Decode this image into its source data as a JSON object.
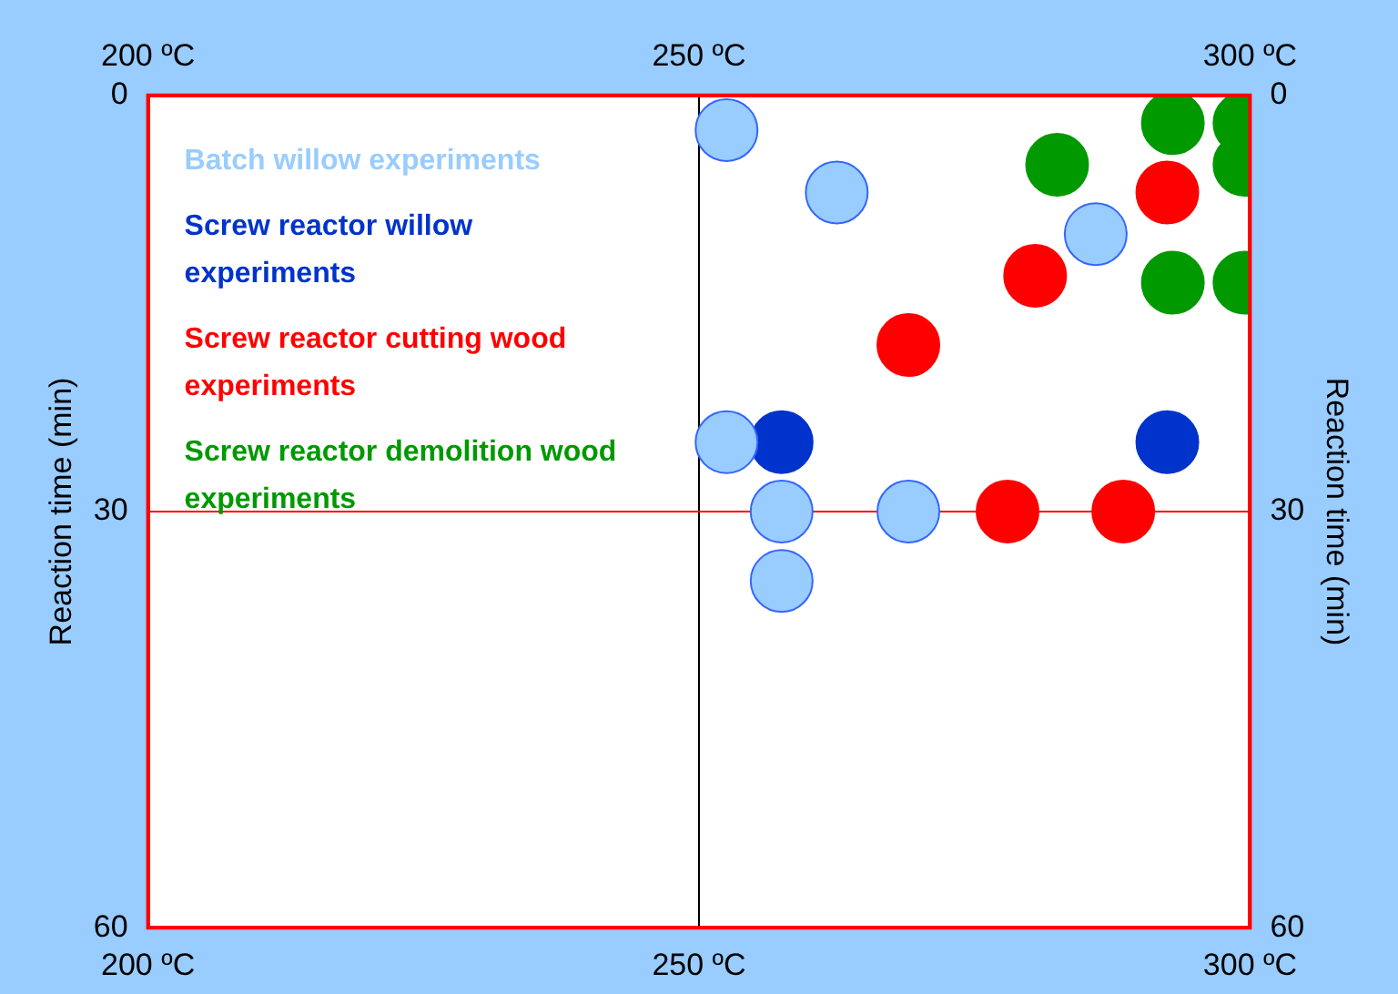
{
  "chart_data": {
    "type": "scatter",
    "xlabel": null,
    "ylabel": "Reaction time (min)",
    "y2label": "Reaction time (min)",
    "xlim": [
      200,
      300
    ],
    "xticks": [
      {
        "value": 200,
        "label": "200 ºC"
      },
      {
        "value": 250,
        "label": "250 ºC"
      },
      {
        "value": 300,
        "label": "300 ºC"
      }
    ],
    "x2lim": [
      200,
      300
    ],
    "x2ticks": [
      {
        "value": 200,
        "label": "200 ºC"
      },
      {
        "value": 250,
        "label": "250 ºC"
      },
      {
        "value": 300,
        "label": "300 ºC"
      }
    ],
    "ylim": [
      60,
      0
    ],
    "yticks": [
      0,
      30,
      60
    ],
    "y2lim": [
      60,
      0
    ],
    "y2ticks": [
      0,
      30,
      60
    ],
    "legend": "top left",
    "marker": "circle",
    "ref_lines": [
      {
        "axis": "x",
        "value": 250,
        "color": "#000000"
      },
      {
        "axis": "y",
        "value": 30,
        "color": "#ff0000"
      }
    ],
    "series": [
      {
        "name": "Batch willow experiments",
        "color": "#99ccff",
        "x": [
          252.5,
          262.5,
          286,
          252.5,
          257.5,
          257.5,
          269
        ],
        "values": [
          2.5,
          7,
          10,
          25,
          30,
          35,
          30
        ]
      },
      {
        "name": "Screw reactor willow experiments",
        "color": "#0033cc",
        "x": [
          257.5,
          292.5
        ],
        "values": [
          25,
          25
        ]
      },
      {
        "name": "Screw reactor cutting wood experiments",
        "color": "#ff0000",
        "x": [
          292.5,
          280.5,
          269,
          278,
          288.5
        ],
        "values": [
          7,
          13,
          18,
          30,
          30
        ]
      },
      {
        "name": "Screw reactor demolition wood experiments",
        "color": "#009900",
        "x": [
          293,
          299.5,
          282.5,
          299.5,
          293,
          299.5
        ],
        "values": [
          2,
          2,
          5,
          5,
          13.5,
          13.5
        ]
      }
    ]
  }
}
